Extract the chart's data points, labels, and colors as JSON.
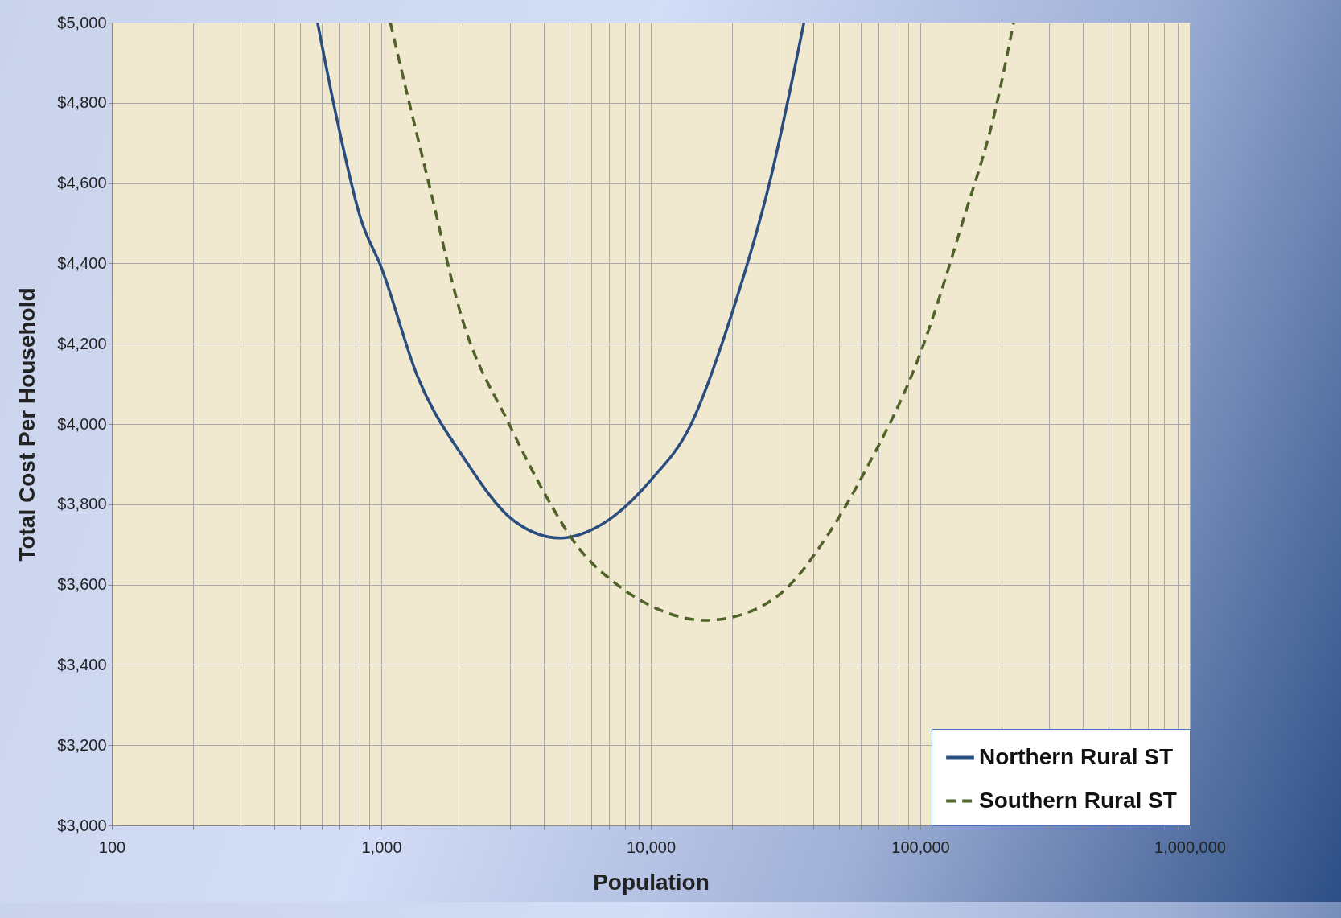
{
  "chart_data": {
    "type": "line",
    "xlabel": "Population",
    "ylabel": "Total Cost Per Household",
    "log": "x",
    "grid": true,
    "legend": "bottom right",
    "xlim": [
      100,
      1000000
    ],
    "ylim": [
      3000,
      5000
    ],
    "xticks": [
      {
        "value": 100,
        "label": "100"
      },
      {
        "value": 200,
        "label": null
      },
      {
        "value": 300,
        "label": null
      },
      {
        "value": 400,
        "label": null
      },
      {
        "value": 500,
        "label": null
      },
      {
        "value": 600,
        "label": null
      },
      {
        "value": 700,
        "label": null
      },
      {
        "value": 800,
        "label": null
      },
      {
        "value": 900,
        "label": null
      },
      {
        "value": 1000,
        "label": "1,000"
      },
      {
        "value": 2000,
        "label": null
      },
      {
        "value": 3000,
        "label": null
      },
      {
        "value": 4000,
        "label": null
      },
      {
        "value": 5000,
        "label": null
      },
      {
        "value": 6000,
        "label": null
      },
      {
        "value": 7000,
        "label": null
      },
      {
        "value": 8000,
        "label": null
      },
      {
        "value": 9000,
        "label": null
      },
      {
        "value": 10000,
        "label": "10,000"
      },
      {
        "value": 20000,
        "label": null
      },
      {
        "value": 30000,
        "label": null
      },
      {
        "value": 40000,
        "label": null
      },
      {
        "value": 50000,
        "label": null
      },
      {
        "value": 60000,
        "label": null
      },
      {
        "value": 70000,
        "label": null
      },
      {
        "value": 80000,
        "label": null
      },
      {
        "value": 90000,
        "label": null
      },
      {
        "value": 100000,
        "label": "100,000"
      },
      {
        "value": 200000,
        "label": null
      },
      {
        "value": 300000,
        "label": null
      },
      {
        "value": 400000,
        "label": null
      },
      {
        "value": 500000,
        "label": null
      },
      {
        "value": 600000,
        "label": null
      },
      {
        "value": 700000,
        "label": null
      },
      {
        "value": 800000,
        "label": null
      },
      {
        "value": 900000,
        "label": null
      },
      {
        "value": 1000000,
        "label": "1,000,000"
      }
    ],
    "yticks": [
      {
        "value": 3000,
        "label": "$3,000"
      },
      {
        "value": 3200,
        "label": "$3,200"
      },
      {
        "value": 3400,
        "label": "$3,400"
      },
      {
        "value": 3600,
        "label": "$3,600"
      },
      {
        "value": 3800,
        "label": "$3,800"
      },
      {
        "value": 4000,
        "label": "$4,000"
      },
      {
        "value": 4200,
        "label": "$4,200"
      },
      {
        "value": 4400,
        "label": "$4,400"
      },
      {
        "value": 4600,
        "label": "$4,600"
      },
      {
        "value": 4800,
        "label": "$4,800"
      },
      {
        "value": 5000,
        "label": "$5,000"
      }
    ],
    "series": [
      {
        "name": "Northern Rural ST",
        "color": "#2a4d80",
        "line_style": "solid",
        "x": [
          580,
          684,
          840,
          1000,
          1360,
          2050,
          3090,
          4600,
          6580,
          10000,
          14000,
          20100,
          27800,
          37000
        ],
        "values": [
          5000,
          4760,
          4510,
          4390,
          4120,
          3910,
          3760,
          3716,
          3750,
          3860,
          3995,
          4280,
          4610,
          5000
        ]
      },
      {
        "name": "Southern Rural ST",
        "color": "#4f6228",
        "line_style": "dashed",
        "x": [
          1080,
          1270,
          1500,
          2000,
          2980,
          4060,
          5330,
          7500,
          10000,
          16000,
          24200,
          31800,
          44800,
          63000,
          100000,
          144000,
          190000,
          222000
        ],
        "values": [
          5000,
          4800,
          4600,
          4260,
          4000,
          3824,
          3696,
          3600,
          3547,
          3511,
          3537,
          3590,
          3718,
          3888,
          4176,
          4506,
          4783,
          5000
        ]
      }
    ]
  }
}
